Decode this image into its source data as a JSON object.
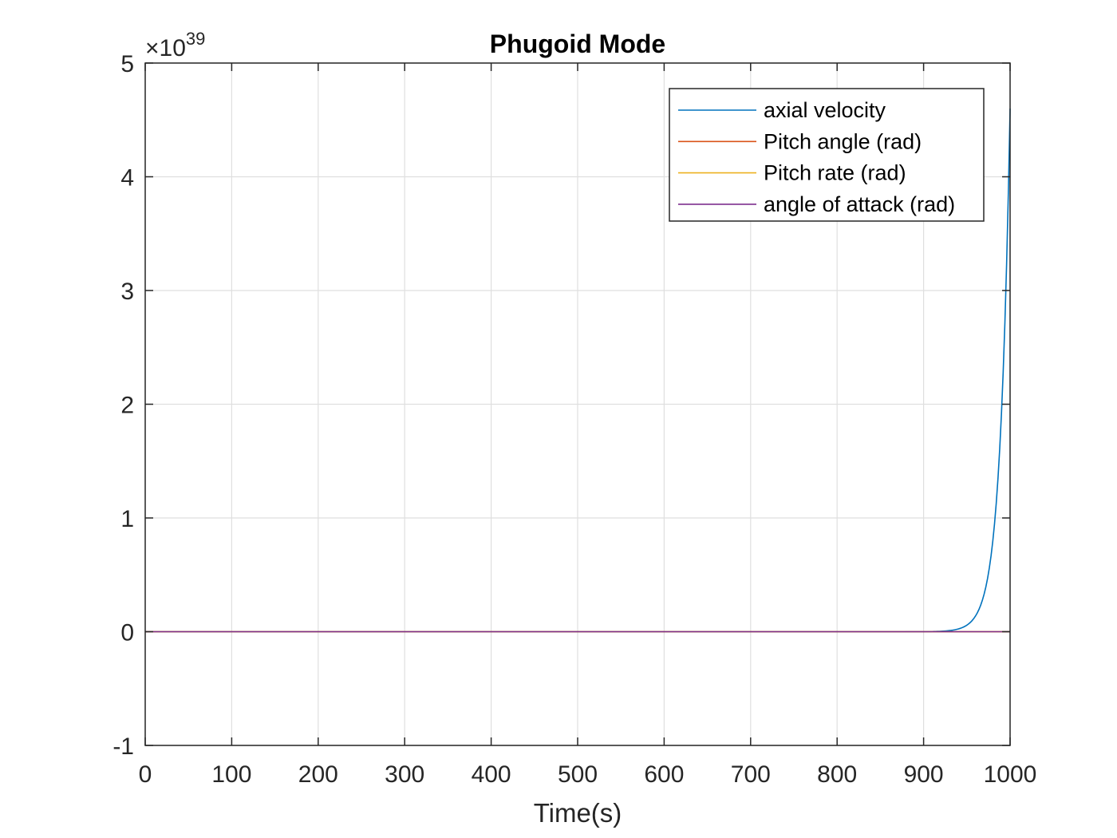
{
  "chart_data": {
    "type": "line",
    "title": "Phugoid Mode",
    "xlabel": "Time(s)",
    "ylabel": "",
    "xlim": [
      0,
      1000
    ],
    "ylim": [
      -1e+39,
      5e+39
    ],
    "y_exponent_label": {
      "base": "×10",
      "exponent": "39"
    },
    "xticks": [
      "0",
      "100",
      "200",
      "300",
      "400",
      "500",
      "600",
      "700",
      "800",
      "900",
      "1000"
    ],
    "yticks": [
      "-1",
      "0",
      "1",
      "2",
      "3",
      "4",
      "5"
    ],
    "grid": true,
    "legend_position": "top-right",
    "series": [
      {
        "name": "axial velocity",
        "color": "#0072BD",
        "x": [
          0,
          880,
          900,
          920,
          930,
          940,
          950,
          960,
          970,
          980,
          990,
          1000
        ],
        "y": [
          0,
          1e+36,
          2e+36,
          8e+36,
          1.6e+37,
          4e+37,
          1.1e+38,
          2.7e+38,
          6.7e+38,
          1.3e+39,
          2.5e+39,
          4.6e+39
        ]
      },
      {
        "name": "Pitch angle (rad)",
        "color": "#D95319",
        "x": [
          0,
          1000
        ],
        "y": [
          0,
          0
        ]
      },
      {
        "name": "Pitch rate (rad)",
        "color": "#EDB120",
        "x": [
          0,
          1000
        ],
        "y": [
          0,
          0
        ]
      },
      {
        "name": "angle of attack (rad)",
        "color": "#7E2F8E",
        "x": [
          0,
          1000
        ],
        "y": [
          0,
          0
        ]
      }
    ]
  }
}
